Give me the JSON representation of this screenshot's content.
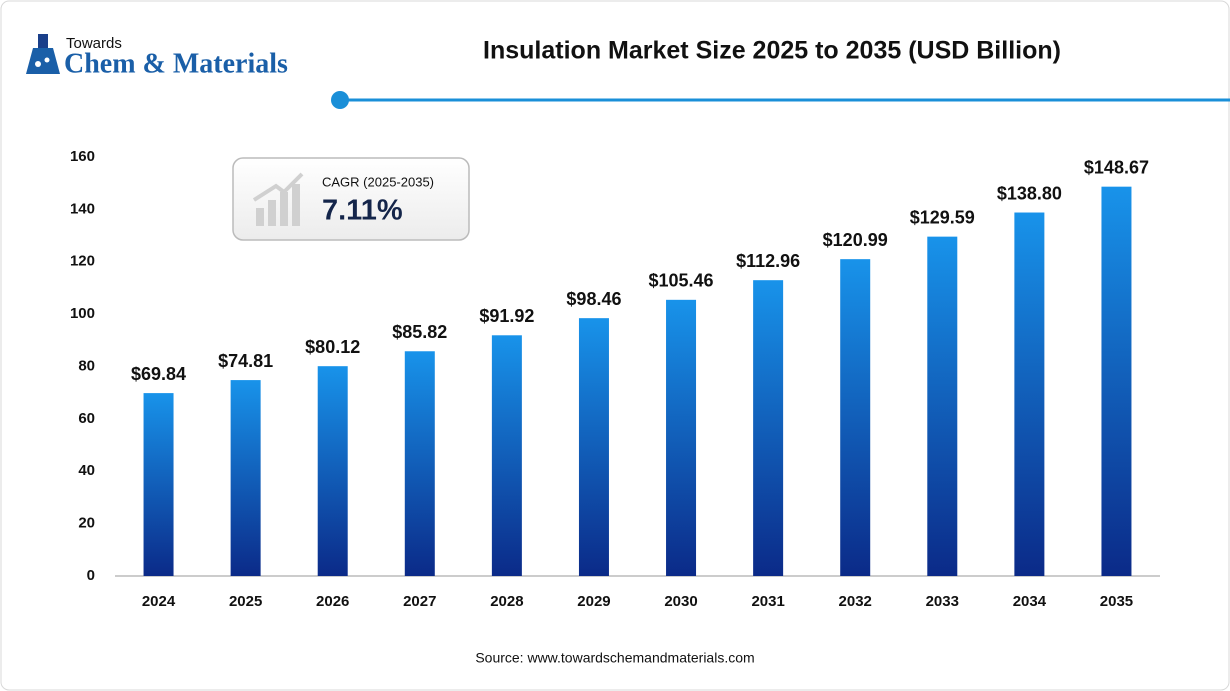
{
  "logo": {
    "line1": "Towards",
    "line2": "Chem & Materials"
  },
  "chart_data": {
    "type": "bar",
    "title": "Insulation Market Size 2025 to 2035 (USD Billion)",
    "categories": [
      "2024",
      "2025",
      "2026",
      "2027",
      "2028",
      "2029",
      "2030",
      "2031",
      "2032",
      "2033",
      "2034",
      "2035"
    ],
    "values": [
      69.84,
      74.81,
      80.12,
      85.82,
      91.92,
      98.46,
      105.46,
      112.96,
      120.99,
      129.59,
      138.8,
      148.67
    ],
    "value_labels": [
      "$69.84",
      "$74.81",
      "$80.12",
      "$85.82",
      "$91.92",
      "$98.46",
      "$105.46",
      "$112.96",
      "$120.99",
      "$129.59",
      "$138.80",
      "$148.67"
    ],
    "color": "#1893ea",
    "ylim": [
      0,
      160
    ],
    "yticks": [
      0,
      20,
      40,
      60,
      80,
      100,
      120,
      140,
      160
    ],
    "grid": false,
    "annotation": {
      "label": "CAGR (2025-2035)",
      "value": "7.11%"
    },
    "source": "Source: www.towardschemandmaterials.com"
  }
}
